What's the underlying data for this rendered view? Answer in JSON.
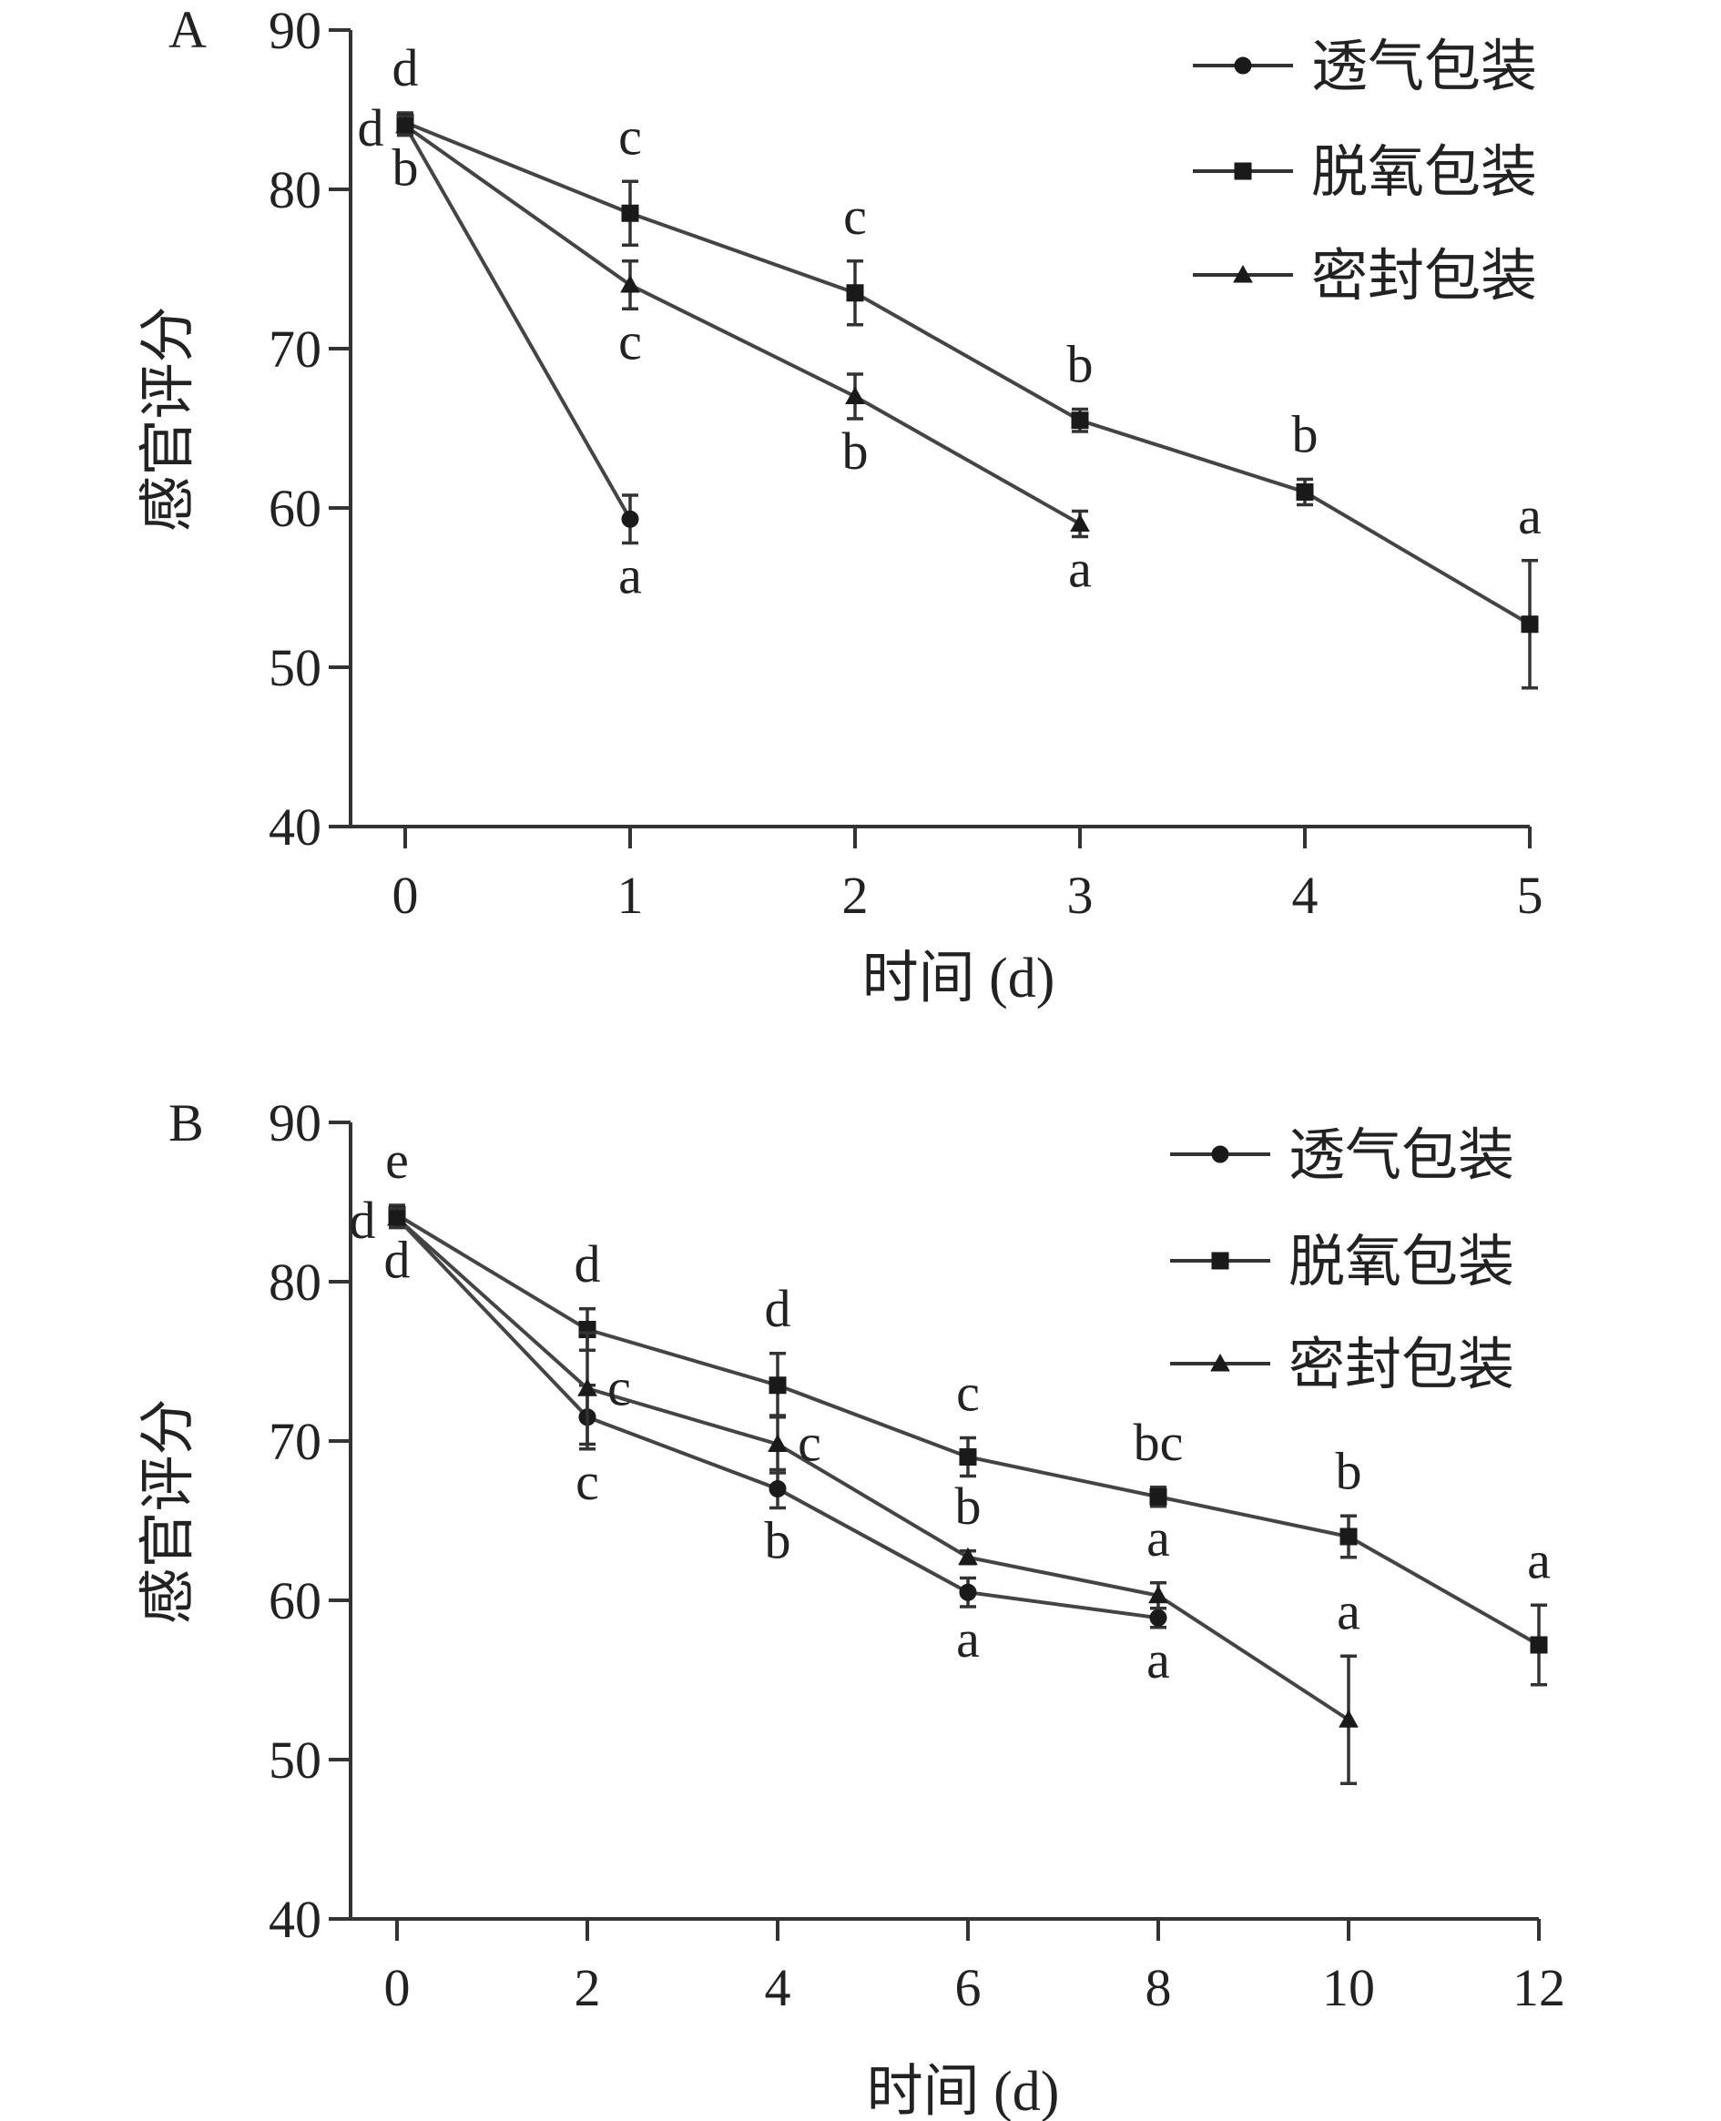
{
  "chart_data": [
    {
      "type": "line",
      "panel_label": "A",
      "xlabel": "时间 (d)",
      "ylabel": "感官评分",
      "ylim": [
        40,
        90
      ],
      "xlim": [
        0,
        5
      ],
      "x_ticks": [
        "0",
        "1",
        "2",
        "3",
        "4",
        "5"
      ],
      "y_ticks": [
        "40",
        "50",
        "60",
        "70",
        "80",
        "90"
      ],
      "legend": "top-right",
      "grid": false,
      "series": [
        {
          "name": "透气包装",
          "marker": "circle",
          "points": [
            {
              "x": 0,
              "y": 84.0,
              "err": 0.6,
              "label": "d",
              "label_pos": "left"
            },
            {
              "x": 1,
              "y": 59.3,
              "err": 1.5,
              "label": "a",
              "label_pos": "below"
            }
          ]
        },
        {
          "name": "脱氧包装",
          "marker": "square",
          "points": [
            {
              "x": 0,
              "y": 84.2,
              "err": 0.6,
              "label": "d",
              "label_pos": "above"
            },
            {
              "x": 1,
              "y": 78.5,
              "err": 2.0,
              "label": "c",
              "label_pos": "above"
            },
            {
              "x": 2,
              "y": 73.5,
              "err": 2.0,
              "label": "c",
              "label_pos": "above"
            },
            {
              "x": 3,
              "y": 65.5,
              "err": 0.7,
              "label": "b",
              "label_pos": "above"
            },
            {
              "x": 4,
              "y": 61.0,
              "err": 0.8,
              "label": "b",
              "label_pos": "above"
            },
            {
              "x": 5,
              "y": 52.7,
              "err": 4.0,
              "label": "a",
              "label_pos": "above"
            }
          ]
        },
        {
          "name": "密封包装",
          "marker": "triangle",
          "points": [
            {
              "x": 0,
              "y": 84.0,
              "err": 0.6,
              "label": "b",
              "label_pos": "below"
            },
            {
              "x": 1,
              "y": 74.0,
              "err": 1.5,
              "label": "c",
              "label_pos": "below"
            },
            {
              "x": 2,
              "y": 67.0,
              "err": 1.4,
              "label": "b",
              "label_pos": "below"
            },
            {
              "x": 3,
              "y": 59.0,
              "err": 0.8,
              "label": "a",
              "label_pos": "below"
            }
          ]
        }
      ]
    },
    {
      "type": "line",
      "panel_label": "B",
      "xlabel": "时间 (d)",
      "ylabel": "感官评分",
      "ylim": [
        40,
        90
      ],
      "xlim": [
        0,
        12
      ],
      "x_ticks": [
        "0",
        "2",
        "4",
        "6",
        "8",
        "10",
        "12"
      ],
      "y_ticks": [
        "40",
        "50",
        "60",
        "70",
        "80",
        "90"
      ],
      "legend": "top-right",
      "grid": false,
      "series": [
        {
          "name": "透气包装",
          "marker": "circle",
          "points": [
            {
              "x": 0,
              "y": 84.0,
              "err": 0.6,
              "label": "d",
              "label_pos": "left"
            },
            {
              "x": 2,
              "y": 71.5,
              "err": 2.0,
              "label": "c",
              "label_pos": "below"
            },
            {
              "x": 4,
              "y": 67.0,
              "err": 1.2,
              "label": "b",
              "label_pos": "below"
            },
            {
              "x": 6,
              "y": 60.5,
              "err": 0.9,
              "label": "a",
              "label_pos": "below"
            },
            {
              "x": 8,
              "y": 58.9,
              "err": 0.6,
              "label": "a",
              "label_pos": "below"
            }
          ]
        },
        {
          "name": "脱氧包装",
          "marker": "square",
          "points": [
            {
              "x": 0,
              "y": 84.2,
              "err": 0.6,
              "label": "e",
              "label_pos": "above"
            },
            {
              "x": 2,
              "y": 77.0,
              "err": 1.3,
              "label": "d",
              "label_pos": "above"
            },
            {
              "x": 4,
              "y": 73.5,
              "err": 2.0,
              "label": "d",
              "label_pos": "above"
            },
            {
              "x": 6,
              "y": 69.0,
              "err": 1.2,
              "label": "c",
              "label_pos": "above"
            },
            {
              "x": 8,
              "y": 66.5,
              "err": 0.6,
              "label": "bc",
              "label_pos": "above"
            },
            {
              "x": 10,
              "y": 64.0,
              "err": 1.3,
              "label": "b",
              "label_pos": "above"
            },
            {
              "x": 12,
              "y": 57.2,
              "err": 2.5,
              "label": "a",
              "label_pos": "above"
            }
          ]
        },
        {
          "name": "密封包装",
          "marker": "triangle",
          "points": [
            {
              "x": 0,
              "y": 84.0,
              "err": 0.6,
              "label": "d",
              "label_pos": "below"
            },
            {
              "x": 2,
              "y": 73.3,
              "err": 3.5,
              "label": "c",
              "label_pos": "right"
            },
            {
              "x": 4,
              "y": 69.8,
              "err": 1.8,
              "label": "c",
              "label_pos": "right"
            },
            {
              "x": 6,
              "y": 62.7,
              "err": 0.4,
              "label": "b",
              "label_pos": "above"
            },
            {
              "x": 8,
              "y": 60.3,
              "err": 0.8,
              "label": "a",
              "label_pos": "above"
            },
            {
              "x": 10,
              "y": 52.5,
              "err": 4.0,
              "label": "a",
              "label_pos": "above"
            }
          ]
        }
      ]
    }
  ]
}
